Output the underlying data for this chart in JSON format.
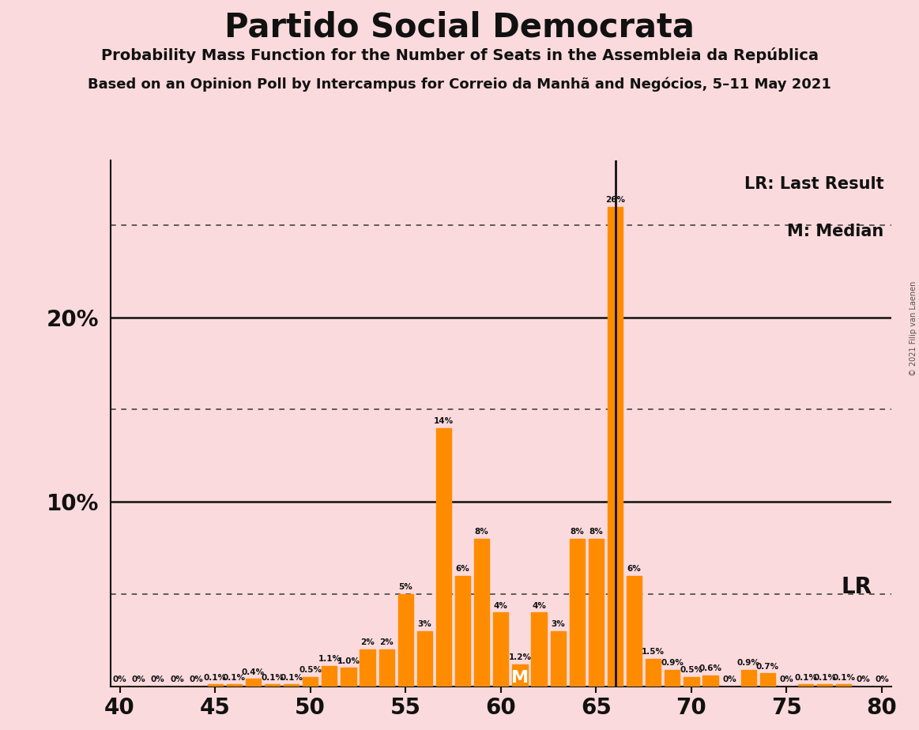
{
  "title": "Partido Social Democrata",
  "subtitle": "Probability Mass Function for the Number of Seats in the Assembleia da República",
  "subtitle2": "Based on an Opinion Poll by Intercampus for Correio da Manhã and Negócios, 5–11 May 2021",
  "copyright": "© 2021 Filip van Laenen",
  "background_color": "#fadadd",
  "bar_color": "#ff8c00",
  "text_color": "#1a1a1a",
  "lr_label": "LR: Last Result",
  "m_label": "M: Median",
  "lr_line": 66,
  "median_seat": 61,
  "xlim": [
    39.5,
    80.5
  ],
  "ylim": [
    0,
    0.285
  ],
  "xticks": [
    40,
    45,
    50,
    55,
    60,
    65,
    70,
    75,
    80
  ],
  "dotted_lines": [
    0.05,
    0.15,
    0.25
  ],
  "solid_lines": [
    0.1,
    0.2
  ],
  "seats": [
    40,
    41,
    42,
    43,
    44,
    45,
    46,
    47,
    48,
    49,
    50,
    51,
    52,
    53,
    54,
    55,
    56,
    57,
    58,
    59,
    60,
    61,
    62,
    63,
    64,
    65,
    66,
    67,
    68,
    69,
    70,
    71,
    72,
    73,
    74,
    75,
    76,
    77,
    78,
    79,
    80
  ],
  "probs": [
    0.0,
    0.0,
    0.0,
    0.0,
    0.0,
    0.001,
    0.001,
    0.004,
    0.001,
    0.001,
    0.005,
    0.011,
    0.01,
    0.02,
    0.02,
    0.05,
    0.03,
    0.14,
    0.06,
    0.08,
    0.04,
    0.012,
    0.04,
    0.03,
    0.08,
    0.08,
    0.26,
    0.06,
    0.015,
    0.009,
    0.005,
    0.006,
    0.0,
    0.009,
    0.007,
    0.0,
    0.001,
    0.001,
    0.001,
    0.0,
    0.0
  ],
  "prob_labels": [
    "0%",
    "0%",
    "0%",
    "0%",
    "0%",
    "0.1%",
    "0.1%",
    "0.4%",
    "0.1%",
    "0.1%",
    "0.5%",
    "1.1%",
    "1.0%",
    "2%",
    "2%",
    "5%",
    "3%",
    "14%",
    "6%",
    "8%",
    "4%",
    "1.2%",
    "4%",
    "3%",
    "8%",
    "8%",
    "26%",
    "6%",
    "1.5%",
    "0.9%",
    "0.5%",
    "0.6%",
    "0%",
    "0.9%",
    "0.7%",
    "0%",
    "0.1%",
    "0.1%",
    "0.1%",
    "0%",
    "0%"
  ],
  "show_zero_labels": [
    40,
    41,
    42,
    43,
    44,
    45,
    46,
    47,
    48,
    49,
    72,
    75,
    79,
    80
  ]
}
